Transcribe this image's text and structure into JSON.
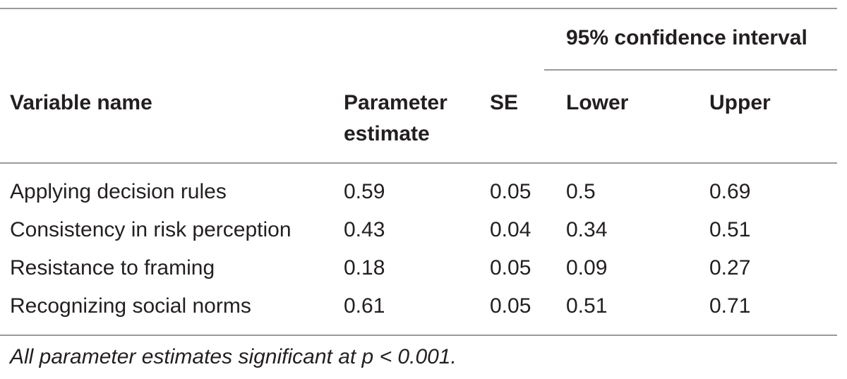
{
  "table": {
    "ci_header": "95% confidence interval",
    "headers": {
      "variable": "Variable name",
      "estimate_line1": "Parameter",
      "estimate_line2": "estimate",
      "se": "SE",
      "lower": "Lower",
      "upper": "Upper"
    },
    "rows": [
      {
        "variable": "Applying decision rules",
        "estimate": "0.59",
        "se": "0.05",
        "lower": "0.5",
        "upper": "0.69"
      },
      {
        "variable": "Consistency in risk perception",
        "estimate": "0.43",
        "se": "0.04",
        "lower": "0.34",
        "upper": "0.51"
      },
      {
        "variable": "Resistance to framing",
        "estimate": "0.18",
        "se": "0.05",
        "lower": "0.09",
        "upper": "0.27"
      },
      {
        "variable": "Recognizing social norms",
        "estimate": "0.61",
        "se": "0.05",
        "lower": "0.51",
        "upper": "0.71"
      }
    ],
    "footnote": "All parameter estimates significant at p < 0.001."
  }
}
